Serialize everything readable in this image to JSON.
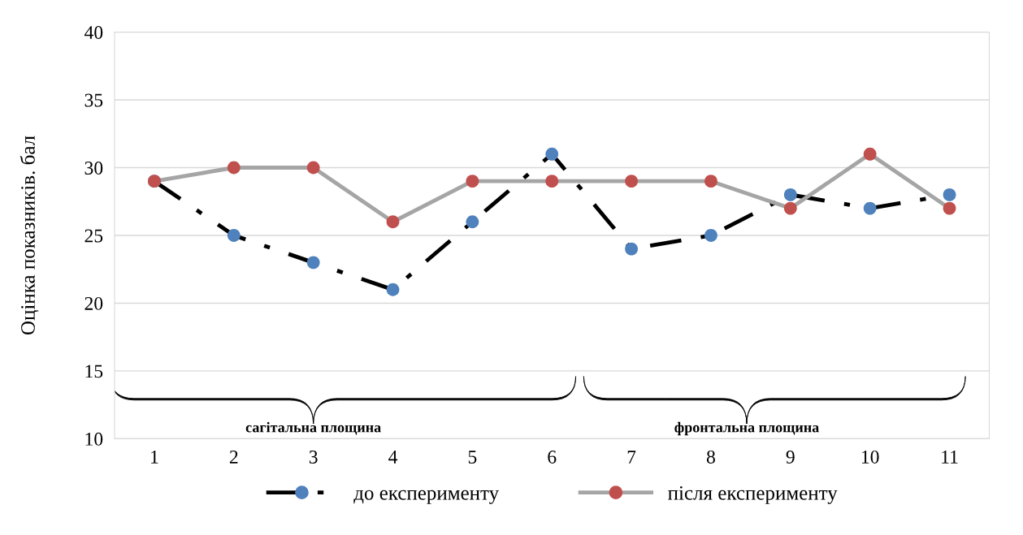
{
  "chart_data": {
    "type": "line",
    "ylabel": "Оцінка показників. бал",
    "categories": [
      "1",
      "2",
      "3",
      "4",
      "5",
      "6",
      "7",
      "8",
      "9",
      "10",
      "11"
    ],
    "series": [
      {
        "name": "до експерименту",
        "color": "#000000",
        "colors": [
          "#4f81bd",
          "#4f81bd",
          "#4f81bd",
          "#4f81bd",
          "#4f81bd",
          "#4f81bd",
          "#4f81bd",
          "#4f81bd",
          "#4f81bd",
          "#4f81bd",
          "#4f81bd"
        ],
        "line_style": "dashed",
        "values": [
          29,
          25,
          23,
          21,
          26,
          31,
          24,
          25,
          28,
          27,
          28
        ]
      },
      {
        "name": "після експерименту",
        "color": "#a5a5a5",
        "colors": [
          "#c0504d",
          "#c0504d",
          "#c0504d",
          "#c0504d",
          "#c0504d",
          "#c0504d",
          "#c0504d",
          "#c0504d",
          "#c0504d",
          "#c0504d",
          "#c0504d"
        ],
        "line_style": "solid",
        "values": [
          29,
          30,
          30,
          26,
          29,
          29,
          29,
          29,
          27,
          31,
          27
        ]
      }
    ],
    "ylim": [
      10,
      40
    ],
    "yticks": [
      10,
      15,
      20,
      25,
      30,
      35,
      40
    ],
    "grid": "y",
    "legend": "bottom",
    "marker": "circle",
    "annotations": [
      "сагітальна площина",
      "фронтальна площина"
    ]
  }
}
